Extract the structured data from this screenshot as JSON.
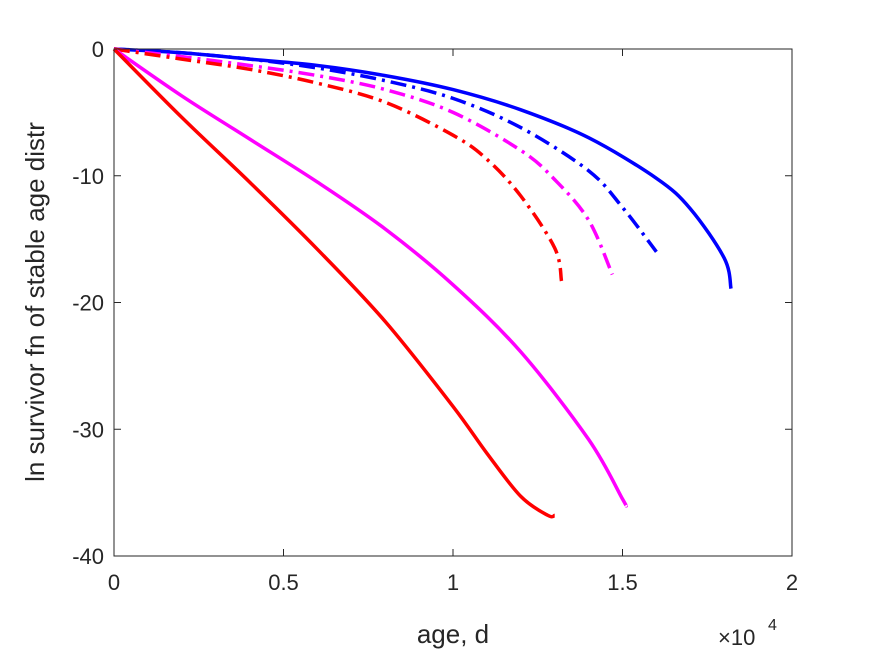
{
  "chart_data": {
    "type": "line",
    "title": "",
    "xlabel": "age, d",
    "ylabel": "ln survivor fn of stable age distr",
    "x_exponent_label": "×10",
    "x_exponent_power": "4",
    "xlim": [
      0,
      2
    ],
    "ylim": [
      -40,
      0
    ],
    "x_scale_note": "x values in units of 10^4 d",
    "xticks": [
      0,
      0.5,
      1,
      1.5,
      2
    ],
    "xtick_labels": [
      "0",
      "0.5",
      "1",
      "1.5",
      "2"
    ],
    "yticks": [
      0,
      -10,
      -20,
      -30,
      -40
    ],
    "ytick_labels": [
      "0",
      "-10",
      "-20",
      "-30",
      "-40"
    ],
    "grid": false,
    "legend": "none",
    "series": [
      {
        "color": "#0000ff",
        "style": "solid",
        "x": [
          0,
          0.2,
          0.4,
          0.6,
          0.8,
          1.0,
          1.2,
          1.4,
          1.6,
          1.7,
          1.8,
          1.82
        ],
        "y": [
          0,
          -0.3,
          -0.8,
          -1.3,
          -2.1,
          -3.2,
          -4.8,
          -7.0,
          -10.2,
          -12.6,
          -16.5,
          -18.9
        ]
      },
      {
        "color": "#0000ff",
        "style": "dashdot",
        "x": [
          0,
          0.2,
          0.4,
          0.6,
          0.8,
          1.0,
          1.2,
          1.4,
          1.5,
          1.6
        ],
        "y": [
          0,
          -0.3,
          -0.8,
          -1.5,
          -2.5,
          -3.9,
          -6.2,
          -9.6,
          -12.5,
          -16.0
        ]
      },
      {
        "color": "#ff00ff",
        "style": "dashdot",
        "x": [
          0,
          0.2,
          0.4,
          0.6,
          0.8,
          1.0,
          1.2,
          1.3,
          1.4,
          1.47
        ],
        "y": [
          0,
          -0.6,
          -1.3,
          -2.1,
          -3.2,
          -5.0,
          -8.0,
          -10.3,
          -13.5,
          -17.8
        ]
      },
      {
        "color": "#ff0000",
        "style": "dashdot",
        "x": [
          0,
          0.2,
          0.4,
          0.6,
          0.8,
          1.0,
          1.1,
          1.2,
          1.3,
          1.32
        ],
        "y": [
          0,
          -0.8,
          -1.6,
          -2.7,
          -4.2,
          -6.8,
          -8.7,
          -11.6,
          -15.7,
          -18.3
        ]
      },
      {
        "color": "#ff00ff",
        "style": "solid",
        "x": [
          0,
          0.2,
          0.4,
          0.6,
          0.8,
          1.0,
          1.2,
          1.4,
          1.5,
          1.51
        ],
        "y": [
          0,
          -3.7,
          -7.1,
          -10.5,
          -14.2,
          -18.6,
          -23.9,
          -30.8,
          -35.5,
          -36.0
        ]
      },
      {
        "color": "#ff0000",
        "style": "solid",
        "x": [
          0,
          0.2,
          0.4,
          0.6,
          0.8,
          1.0,
          1.1,
          1.2,
          1.28,
          1.3
        ],
        "y": [
          0,
          -5.4,
          -10.5,
          -15.8,
          -21.5,
          -28.2,
          -31.9,
          -35.3,
          -36.8,
          -36.8
        ]
      }
    ]
  }
}
